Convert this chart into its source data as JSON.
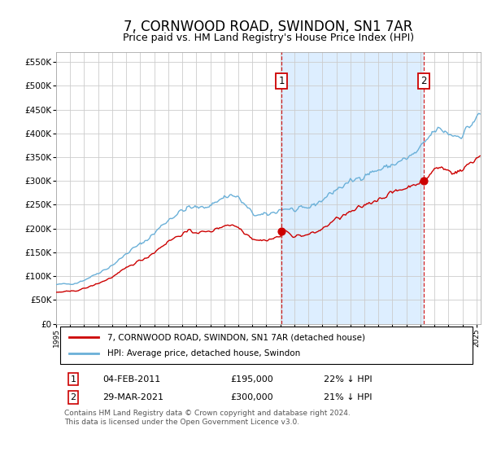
{
  "title": "7, CORNWOOD ROAD, SWINDON, SN1 7AR",
  "subtitle": "Price paid vs. HM Land Registry's House Price Index (HPI)",
  "title_fontsize": 12,
  "subtitle_fontsize": 9,
  "plot_bg_color": "#ffffff",
  "fig_bg_color": "#ffffff",
  "grid_color": "#cccccc",
  "ylim": [
    0,
    570000
  ],
  "yticks": [
    0,
    50000,
    100000,
    150000,
    200000,
    250000,
    300000,
    350000,
    400000,
    450000,
    500000,
    550000
  ],
  "ytick_labels": [
    "£0",
    "£50K",
    "£100K",
    "£150K",
    "£200K",
    "£250K",
    "£300K",
    "£350K",
    "£400K",
    "£450K",
    "£500K",
    "£550K"
  ],
  "xlim_start": 1995.0,
  "xlim_end": 2025.3,
  "xtick_years": [
    1995,
    1996,
    1997,
    1998,
    1999,
    2000,
    2001,
    2002,
    2003,
    2004,
    2005,
    2006,
    2007,
    2008,
    2009,
    2010,
    2011,
    2012,
    2013,
    2014,
    2015,
    2016,
    2017,
    2018,
    2019,
    2020,
    2021,
    2022,
    2023,
    2024,
    2025
  ],
  "hpi_line_color": "#6ab0d8",
  "property_line_color": "#cc0000",
  "sale1_x": 2011.08,
  "sale1_y": 195000,
  "sale1_label": "04-FEB-2011",
  "sale1_price": "£195,000",
  "sale1_pct": "22% ↓ HPI",
  "sale2_x": 2021.23,
  "sale2_y": 300000,
  "sale2_label": "29-MAR-2021",
  "sale2_price": "£300,000",
  "sale2_pct": "21% ↓ HPI",
  "shade_color": "#ddeeff",
  "legend_line1": "7, CORNWOOD ROAD, SWINDON, SN1 7AR (detached house)",
  "legend_line2": "HPI: Average price, detached house, Swindon",
  "footer": "Contains HM Land Registry data © Crown copyright and database right 2024.\nThis data is licensed under the Open Government Licence v3.0."
}
